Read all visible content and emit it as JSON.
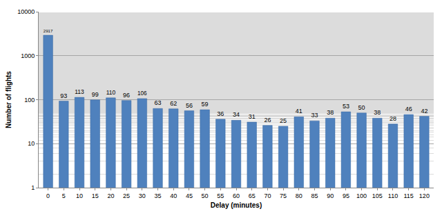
{
  "chart_data": {
    "type": "bar",
    "x_label": "Delay (minutes)",
    "y_label": "Number of flights",
    "categories": [
      "0",
      "5",
      "10",
      "15",
      "20",
      "25",
      "30",
      "35",
      "40",
      "45",
      "50",
      "55",
      "60",
      "65",
      "70",
      "75",
      "80",
      "85",
      "90",
      "95",
      "100",
      "105",
      "110",
      "115",
      "120"
    ],
    "values": [
      2917,
      93,
      113,
      99,
      110,
      96,
      106,
      63,
      62,
      56,
      59,
      36,
      34,
      31,
      26,
      25,
      41,
      33,
      38,
      53,
      50,
      38,
      28,
      46,
      42
    ],
    "color": "#4f81bd",
    "log": "y",
    "ylim": [
      1,
      10000
    ],
    "yticks": [
      1,
      10,
      100,
      1000,
      10000
    ],
    "grid": true,
    "data_labels": true
  }
}
